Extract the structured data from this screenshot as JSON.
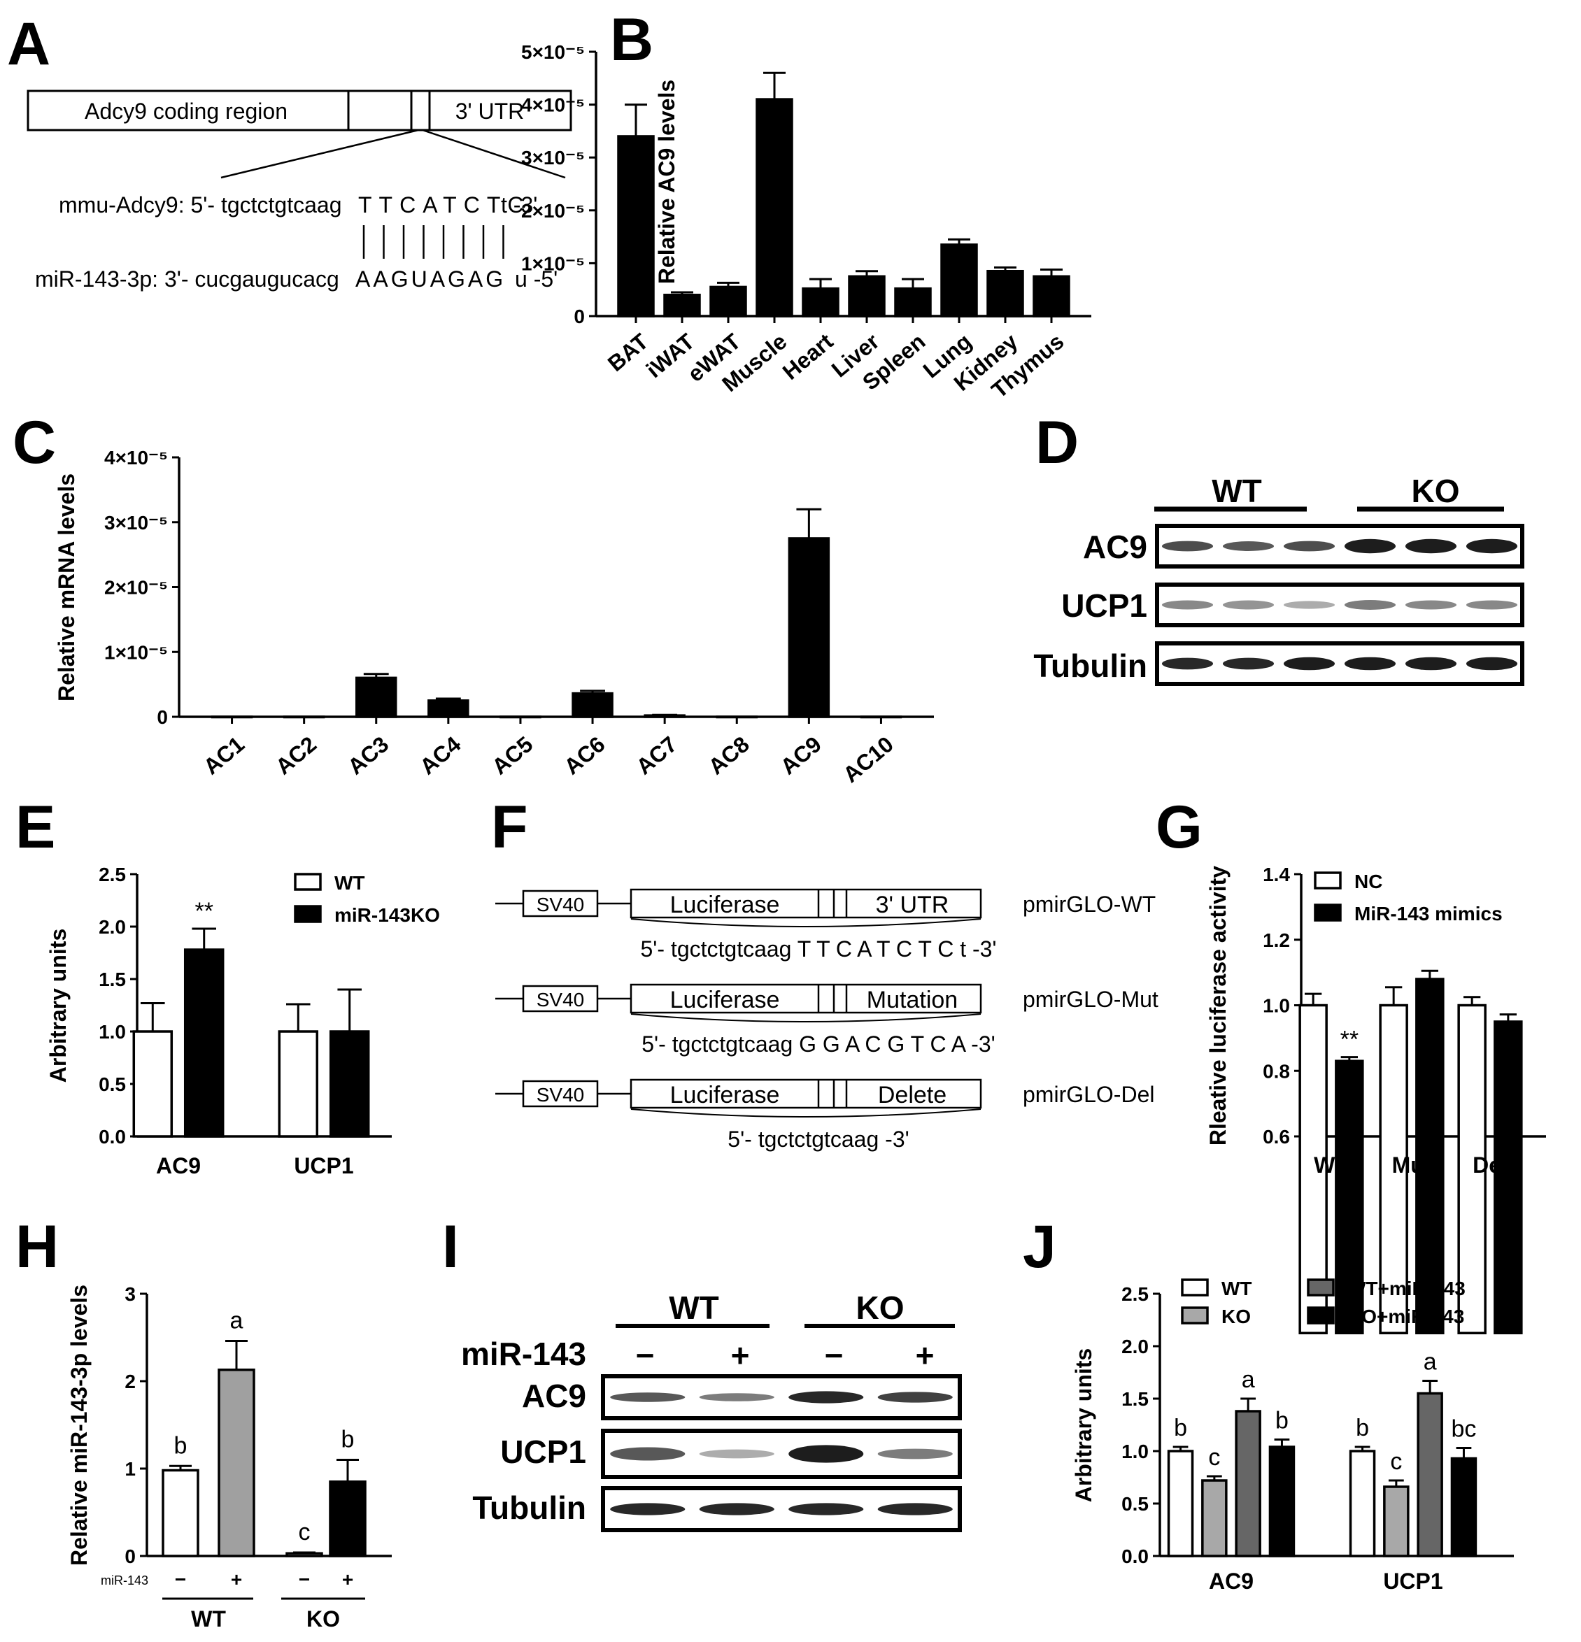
{
  "panels": {
    "A": {
      "letter": "A",
      "coding_label": "Adcy9 coding region",
      "utr_label": "3' UTR",
      "mmu_prefix": "mmu-Adcy9: 5'- tgctctgtcaag",
      "mmu_core": "TTCATCTC",
      "mmu_suffix": "t -3'",
      "mir_prefix": "miR-143-3p: 3'- cucgaugucacg",
      "mir_core": "AAGUAGAG",
      "mir_suffix": "u -5'"
    },
    "B": {
      "letter": "B"
    },
    "C": {
      "letter": "C"
    },
    "D": {
      "letter": "D",
      "groups": [
        "WT",
        "KO"
      ],
      "rows": [
        "AC9",
        "UCP1",
        "Tubulin"
      ]
    },
    "E": {
      "letter": "E"
    },
    "F": {
      "letter": "F",
      "constructs": [
        {
          "promoter": "SV40",
          "gene": "Luciferase",
          "region": "3' UTR",
          "name": "pmirGLO-WT",
          "seq": "5'- tgctctgtcaag T T C A T C T C t -3'"
        },
        {
          "promoter": "SV40",
          "gene": "Luciferase",
          "region": "Mutation",
          "name": "pmirGLO-Mut",
          "seq": "5'- tgctctgtcaag G G A C G T C A -3'"
        },
        {
          "promoter": "SV40",
          "gene": "Luciferase",
          "region": "Delete",
          "name": "pmirGLO-Del",
          "seq": "5'- tgctctgtcaag -3'"
        }
      ]
    },
    "G": {
      "letter": "G"
    },
    "H": {
      "letter": "H"
    },
    "I": {
      "letter": "I",
      "groups": [
        "WT",
        "KO"
      ],
      "treatment_label": "miR-143",
      "signs": [
        "−",
        "+",
        "−",
        "+"
      ],
      "rows": [
        "AC9",
        "UCP1",
        "Tubulin"
      ]
    },
    "J": {
      "letter": "J"
    }
  },
  "chart_data": [
    {
      "panel": "B",
      "type": "bar",
      "ylabel": "Relative AC9 levels",
      "ylim": [
        0,
        5e-05
      ],
      "yticks": [
        "0",
        "1×10⁻⁵",
        "2×10⁻⁵",
        "3×10⁻⁵",
        "4×10⁻⁵",
        "5×10⁻⁵"
      ],
      "categories": [
        "BAT",
        "iWAT",
        "eWAT",
        "Muscle",
        "Heart",
        "Liver",
        "Spleen",
        "Lung",
        "Kidney",
        "Thymus"
      ],
      "values": [
        3.4e-05,
        4e-06,
        5.5e-06,
        4.1e-05,
        5.2e-06,
        7.5e-06,
        5.2e-06,
        1.35e-05,
        8.5e-06,
        7.5e-06
      ],
      "errors": [
        6e-06,
        5e-07,
        8e-07,
        5e-06,
        1.8e-06,
        1e-06,
        1.8e-06,
        1e-06,
        7e-07,
        1.3e-06
      ]
    },
    {
      "panel": "C",
      "type": "bar",
      "ylabel": "Relative mRNA levels",
      "ylim": [
        0,
        4e-05
      ],
      "yticks": [
        "0",
        "1×10⁻⁵",
        "2×10⁻⁵",
        "3×10⁻⁵",
        "4×10⁻⁵"
      ],
      "categories": [
        "AC1",
        "AC2",
        "AC3",
        "AC4",
        "AC5",
        "AC6",
        "AC7",
        "AC8",
        "AC9",
        "AC10"
      ],
      "values": [
        0,
        0,
        6e-06,
        2.5e-06,
        0,
        3.6e-06,
        2e-07,
        0,
        2.75e-05,
        0
      ],
      "errors": [
        0,
        0,
        6e-07,
        3e-07,
        0,
        4e-07,
        1e-07,
        0,
        4.5e-06,
        0
      ]
    },
    {
      "panel": "E",
      "type": "bar",
      "ylabel": "Arbitrary units",
      "ylim": [
        0,
        2.5
      ],
      "yticks": [
        "0.0",
        "0.5",
        "1.0",
        "1.5",
        "2.0",
        "2.5"
      ],
      "categories": [
        "AC9",
        "UCP1"
      ],
      "legend": "top-right",
      "series": [
        {
          "name": "WT",
          "color": "#ffffff",
          "values": [
            1.0,
            1.0
          ],
          "errors": [
            0.27,
            0.26
          ],
          "labels": [
            "",
            ""
          ]
        },
        {
          "name": "miR-143KO",
          "color": "#000000",
          "values": [
            1.78,
            1.0
          ],
          "errors": [
            0.2,
            0.4
          ],
          "labels": [
            "**",
            ""
          ]
        }
      ]
    },
    {
      "panel": "G",
      "type": "bar",
      "ylabel": "Rleative luciferase activity",
      "ylim": [
        0.6,
        1.4
      ],
      "yticks": [
        "0.6",
        "0.8",
        "1.0",
        "1.2",
        "1.4"
      ],
      "categories": [
        "WT",
        "Mut",
        "Del"
      ],
      "legend": "top-left",
      "series": [
        {
          "name": "NC",
          "color": "#ffffff",
          "values": [
            1.0,
            1.0,
            1.0
          ],
          "errors": [
            0.035,
            0.055,
            0.025
          ],
          "labels": [
            "",
            "",
            ""
          ]
        },
        {
          "name": "MiR-143 mimics",
          "color": "#000000",
          "values": [
            0.83,
            1.08,
            0.95
          ],
          "errors": [
            0.012,
            0.025,
            0.022
          ],
          "labels": [
            "**",
            "",
            ""
          ]
        }
      ]
    },
    {
      "panel": "H",
      "type": "bar",
      "ylabel": "Relative miR-143-3p levels",
      "ylim": [
        0,
        3
      ],
      "yticks": [
        "0",
        "1",
        "2",
        "3"
      ],
      "treatment_label": "miR-143",
      "signs": [
        "−",
        "+",
        "−",
        "+"
      ],
      "groups": [
        "WT",
        "KO"
      ],
      "values": [
        0.98,
        2.13,
        0.03,
        0.85
      ],
      "errors": [
        0.05,
        0.33,
        0.01,
        0.25
      ],
      "colors": [
        "#ffffff",
        "#a0a0a0",
        "#ffffff",
        "#000000"
      ],
      "labels": [
        "b",
        "a",
        "c",
        "b"
      ]
    },
    {
      "panel": "J",
      "type": "bar",
      "ylabel": "Arbitrary units",
      "ylim": [
        0,
        2.5
      ],
      "yticks": [
        "0.0",
        "0.5",
        "1.0",
        "1.5",
        "2.0",
        "2.5"
      ],
      "categories": [
        "AC9",
        "UCP1"
      ],
      "legend": "top",
      "series": [
        {
          "name": "WT",
          "color": "#ffffff",
          "values": [
            1.0,
            1.0
          ],
          "errors": [
            0.04,
            0.04
          ],
          "labels": [
            "b",
            "b"
          ]
        },
        {
          "name": "KO",
          "color": "#a8a8a8",
          "values": [
            0.72,
            0.66
          ],
          "errors": [
            0.04,
            0.06
          ],
          "labels": [
            "c",
            "c"
          ]
        },
        {
          "name": "WT+miR-143",
          "color": "#666666",
          "values": [
            1.38,
            1.55
          ],
          "errors": [
            0.12,
            0.12
          ],
          "labels": [
            "a",
            "a"
          ]
        },
        {
          "name": "KO+miR-143",
          "color": "#000000",
          "values": [
            1.04,
            0.93
          ],
          "errors": [
            0.07,
            0.1
          ],
          "labels": [
            "b",
            "bc"
          ]
        }
      ]
    }
  ]
}
